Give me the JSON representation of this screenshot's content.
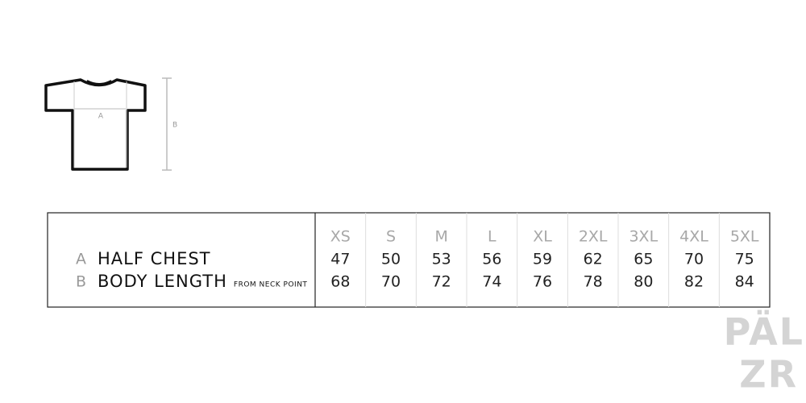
{
  "diagram": {
    "label_a": "A",
    "label_b": "B"
  },
  "table": {
    "sizes": [
      "XS",
      "S",
      "M",
      "L",
      "XL",
      "2XL",
      "3XL",
      "4XL",
      "5XL"
    ],
    "rows": [
      {
        "letter": "A",
        "label": "HALF CHEST",
        "values": [
          47,
          50,
          53,
          56,
          59,
          62,
          65,
          70,
          75
        ]
      },
      {
        "letter": "B",
        "label": "BODY LENGTH",
        "note": "FROM NECK POINT",
        "values": [
          68,
          70,
          72,
          74,
          76,
          78,
          80,
          82,
          84
        ]
      }
    ]
  },
  "watermark": {
    "line1": "PÄL",
    "line2": "ZR"
  }
}
